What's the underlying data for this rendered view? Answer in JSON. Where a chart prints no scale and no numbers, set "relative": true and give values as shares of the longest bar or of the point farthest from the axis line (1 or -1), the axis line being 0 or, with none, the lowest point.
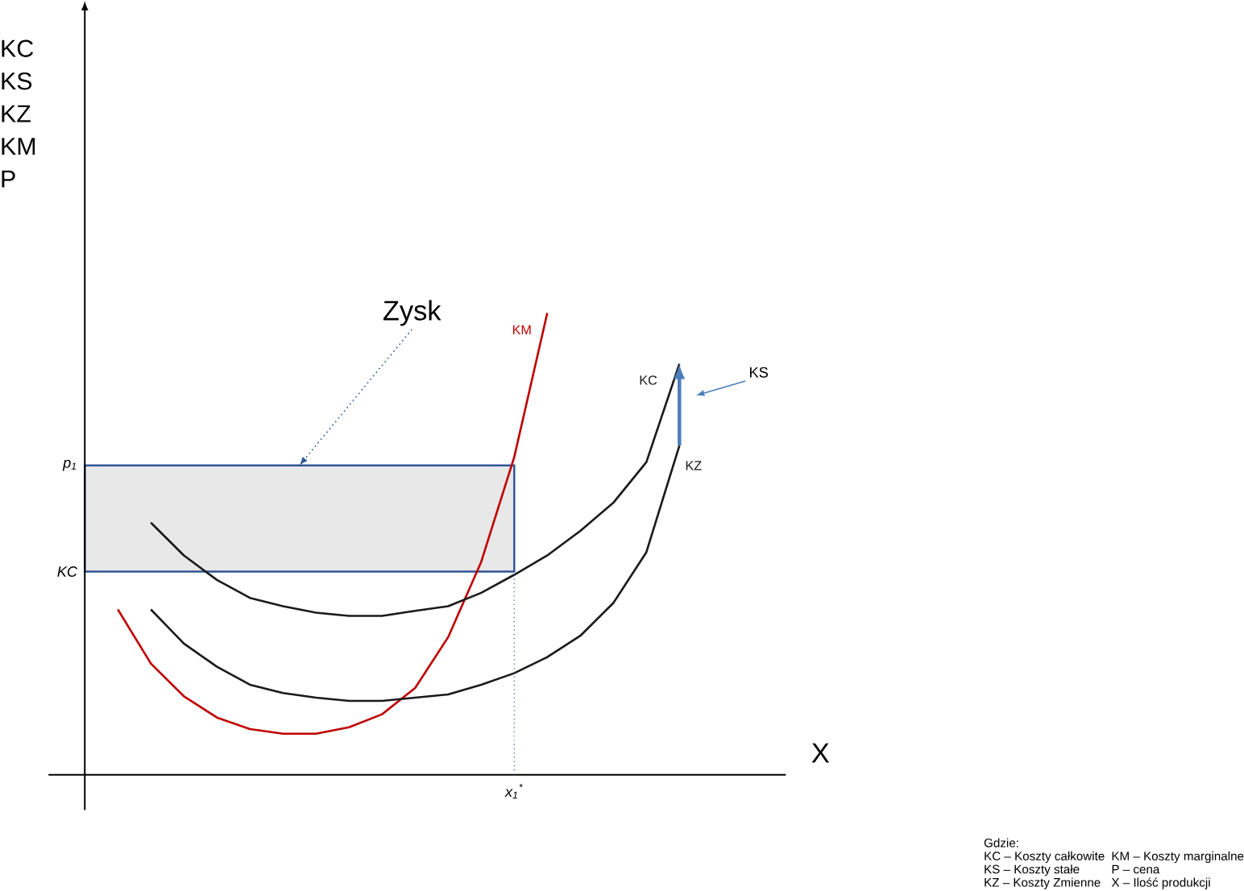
{
  "chart_data": {
    "type": "line",
    "relative": true,
    "xlabel": "X",
    "categories": [
      null,
      null,
      null,
      null,
      null,
      null,
      null,
      null,
      null,
      null,
      null,
      null,
      null,
      null,
      null,
      null,
      null,
      null,
      null
    ],
    "series": [
      {
        "name": "KM",
        "color": "#c00000",
        "values": [
          null,
          0.358,
          0.241,
          0.17,
          0.124,
          0.099,
          0.089,
          0.089,
          0.103,
          0.131,
          0.188,
          0.298,
          0.461,
          0.688,
          1.0,
          null,
          null,
          null,
          null
        ]
      },
      {
        "name": "KC",
        "color": "#1a1a1a",
        "values": [
          null,
          null,
          0.546,
          0.475,
          0.422,
          0.383,
          0.365,
          0.351,
          0.344,
          0.344,
          0.355,
          0.365,
          0.394,
          0.433,
          0.475,
          0.528,
          0.589,
          0.677,
          0.89
        ]
      },
      {
        "name": "KZ",
        "color": "#1a1a1a",
        "values": [
          null,
          null,
          0.358,
          0.284,
          0.234,
          0.195,
          0.177,
          0.167,
          0.16,
          0.16,
          0.167,
          0.174,
          0.195,
          0.22,
          0.255,
          0.301,
          0.372,
          0.482,
          0.713
        ]
      }
    ],
    "bands": [
      {
        "axis": "y",
        "from": 0.44,
        "to": 0.67,
        "label": "Zysk",
        "color": "#2f5597"
      }
    ],
    "annotations": [
      "KS",
      "x$_{1}$$^{*}$",
      "p$_{1}$",
      "KC",
      "KC KS KZ KM P",
      "Gdzie:",
      "KC – Koszty całkowite",
      "KM – Koszty marginalne",
      "KS – Koszty stałe",
      "P – cena",
      "KZ – Koszty Zmienne",
      "X – Ilość produkcji"
    ]
  }
}
